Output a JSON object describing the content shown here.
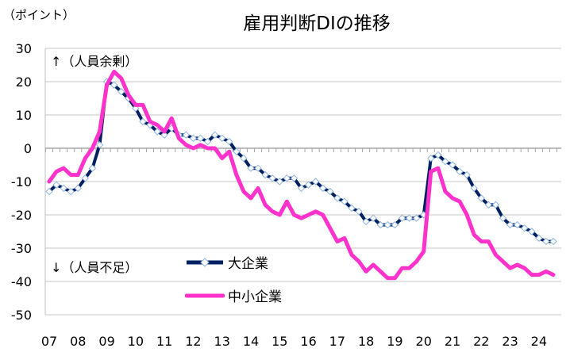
{
  "chart_data": {
    "type": "line",
    "title": "雇用判断DIの推移",
    "ylabel": "（ポイント）",
    "ylim": [
      -50,
      30
    ],
    "yticks": [
      30,
      20,
      10,
      0,
      -10,
      -20,
      -30,
      -40,
      -50
    ],
    "xtick_labels": [
      "07",
      "08",
      "09",
      "10",
      "11",
      "12",
      "13",
      "14",
      "15",
      "16",
      "17",
      "18",
      "19",
      "20",
      "21",
      "22",
      "23",
      "24"
    ],
    "x_unit": "quarterly, 2007 Q1 – 2024 Q3",
    "annotations": {
      "up": "↑（人員余剰）",
      "down": "↓（人員不足）"
    },
    "grid": true,
    "legend_position": "bottom-left-inside",
    "series": [
      {
        "name": "大企業",
        "color": "#002060",
        "marker": "diamond",
        "values": [
          -13,
          -11,
          -12,
          -13,
          -12,
          -9,
          -6,
          1,
          20,
          19,
          17,
          15,
          12,
          8,
          7,
          5,
          4,
          6,
          4,
          4,
          3,
          3,
          2,
          4,
          3,
          2,
          -1,
          -3,
          -6,
          -6,
          -8,
          -9,
          -10,
          -9,
          -9,
          -12,
          -11,
          -10,
          -12,
          -13,
          -15,
          -16,
          -18,
          -19,
          -22,
          -21,
          -23,
          -23,
          -23,
          -21,
          -21,
          -21,
          -20,
          -3,
          -2,
          -4,
          -5,
          -7,
          -8,
          -12,
          -15,
          -17,
          -17,
          -21,
          -23,
          -23,
          -24,
          -25,
          -27,
          -28,
          -28
        ]
      },
      {
        "name": "中小企業",
        "color": "#FF33CC",
        "marker": "none",
        "values": [
          -10,
          -7,
          -6,
          -8,
          -8,
          -3,
          0,
          5,
          19,
          23,
          21,
          16,
          13,
          13,
          8,
          7,
          5,
          9,
          3,
          1,
          0,
          1,
          0,
          0,
          -3,
          -1,
          -8,
          -13,
          -15,
          -12,
          -17,
          -19,
          -20,
          -16,
          -20,
          -21,
          -20,
          -19,
          -20,
          -24,
          -28,
          -27,
          -32,
          -34,
          -37,
          -35,
          -37,
          -39,
          -39,
          -36,
          -36,
          -34,
          -31,
          -7,
          -6,
          -13,
          -15,
          -16,
          -20,
          -26,
          -28,
          -28,
          -32,
          -34,
          -36,
          -35,
          -36,
          -38,
          -38,
          -37,
          -38
        ]
      }
    ]
  }
}
